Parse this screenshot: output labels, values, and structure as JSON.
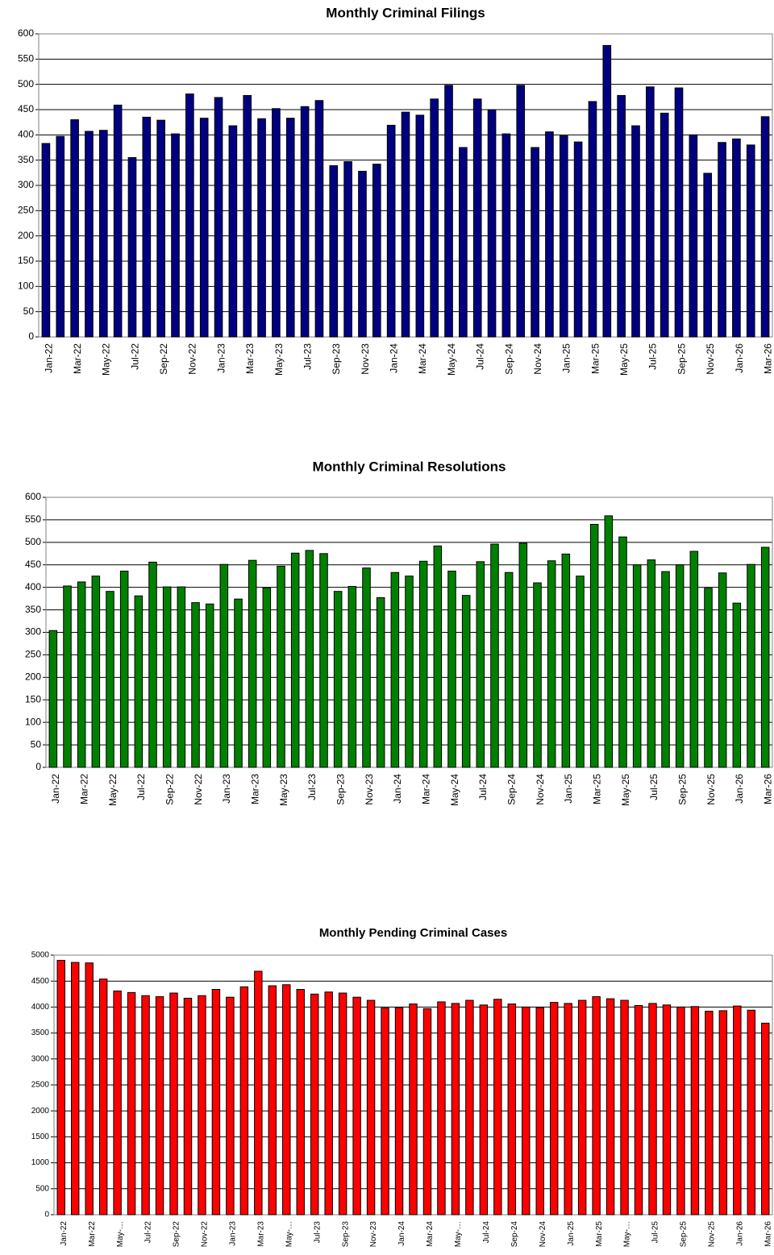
{
  "chart_data": [
    {
      "type": "bar",
      "title": "Monthly Criminal Filings",
      "color": "#000080",
      "grid": true,
      "categories": [
        "Jan-22",
        null,
        "Mar-22",
        null,
        "May-22",
        null,
        "Jul-22",
        null,
        "Sep-22",
        null,
        "Nov-22",
        null,
        "Jan-23",
        null,
        "Mar-23",
        null,
        "May-23",
        null,
        "Jul-23",
        null,
        "Sep-23",
        null,
        "Nov-23",
        null,
        "Jan-24",
        null,
        "Mar-24",
        null,
        "May-24",
        null,
        "Jul-24",
        null,
        "Sep-24",
        null,
        "Nov-24",
        null,
        "Jan-25",
        null,
        "Mar-25",
        null,
        "May-25",
        null,
        "Jul-25",
        null,
        "Sep-25",
        null,
        "Nov-25",
        null,
        "Jan-26",
        null,
        "Mar-26"
      ],
      "values": [
        383,
        397,
        430,
        407,
        409,
        459,
        355,
        435,
        429,
        402,
        481,
        433,
        474,
        418,
        478,
        432,
        452,
        433,
        456,
        468,
        339,
        347,
        328,
        342,
        419,
        445,
        439,
        471,
        498,
        375,
        471,
        450,
        402,
        498,
        375,
        406,
        398,
        386,
        466,
        577,
        478,
        418,
        495,
        443,
        493,
        400,
        324,
        385,
        392,
        380,
        436
      ],
      "ylim": [
        0,
        600
      ],
      "yticks": [
        0,
        50,
        100,
        150,
        200,
        250,
        300,
        350,
        400,
        450,
        500,
        550,
        600
      ]
    },
    {
      "type": "bar",
      "title": "Monthly Criminal Resolutions",
      "color": "#008000",
      "grid": true,
      "categories": [
        "Jan-22",
        null,
        "Mar-22",
        null,
        "May-22",
        null,
        "Jul-22",
        null,
        "Sep-22",
        null,
        "Nov-22",
        null,
        "Jan-23",
        null,
        "Mar-23",
        null,
        "May-23",
        null,
        "Jul-23",
        null,
        "Sep-23",
        null,
        "Nov-23",
        null,
        "Jan-24",
        null,
        "Mar-24",
        null,
        "May-24",
        null,
        "Jul-24",
        null,
        "Sep-24",
        null,
        "Nov-24",
        null,
        "Jan-25",
        null,
        "Mar-25",
        null,
        "May-25",
        null,
        "Jul-25",
        null,
        "Sep-25",
        null,
        "Nov-25",
        null,
        "Jan-26",
        null,
        "Mar-26"
      ],
      "values": [
        304,
        403,
        412,
        425,
        391,
        436,
        381,
        456,
        401,
        401,
        366,
        363,
        451,
        374,
        460,
        399,
        447,
        476,
        482,
        475,
        391,
        402,
        443,
        377,
        433,
        425,
        458,
        492,
        436,
        382,
        457,
        496,
        433,
        498,
        410,
        459,
        474,
        425,
        540,
        559,
        512,
        450,
        461,
        435,
        450,
        480,
        398,
        432,
        365,
        451,
        489
      ],
      "ylim": [
        0,
        600
      ],
      "yticks": [
        0,
        50,
        100,
        150,
        200,
        250,
        300,
        350,
        400,
        450,
        500,
        550,
        600
      ]
    },
    {
      "type": "bar",
      "title": "Monthly Pending Criminal Cases",
      "color": "#ff0000",
      "grid": true,
      "categories": [
        "Jan-22",
        null,
        "Mar-22",
        null,
        "May-…",
        null,
        "Jul-22",
        null,
        "Sep-22",
        null,
        "Nov-22",
        null,
        "Jan-23",
        null,
        "Mar-23",
        null,
        "May-…",
        null,
        "Jul-23",
        null,
        "Sep-23",
        null,
        "Nov-23",
        null,
        "Jan-24",
        null,
        "Mar-24",
        null,
        "May-…",
        null,
        "Jul-24",
        null,
        "Sep-24",
        null,
        "Nov-24",
        null,
        "Jan-25",
        null,
        "Mar-25",
        null,
        "May-…",
        null,
        "Jul-25",
        null,
        "Sep-25",
        null,
        "Nov-25",
        null,
        "Jan-26",
        null,
        "Mar-26"
      ],
      "values": [
        4900,
        4860,
        4850,
        4540,
        4310,
        4280,
        4220,
        4200,
        4270,
        4170,
        4220,
        4340,
        4190,
        4390,
        4690,
        4410,
        4430,
        4340,
        4250,
        4290,
        4270,
        4190,
        4130,
        3980,
        3990,
        4060,
        3970,
        4100,
        4070,
        4130,
        4040,
        4150,
        4060,
        4000,
        3990,
        4090,
        4070,
        4130,
        4200,
        4160,
        4130,
        4030,
        4070,
        4040,
        4000,
        4010,
        3920,
        3930,
        4020,
        3940,
        3690
      ],
      "ylim": [
        0,
        5000
      ],
      "yticks": [
        0,
        500,
        1000,
        1500,
        2000,
        2500,
        3000,
        3500,
        4000,
        4500,
        5000
      ]
    }
  ]
}
